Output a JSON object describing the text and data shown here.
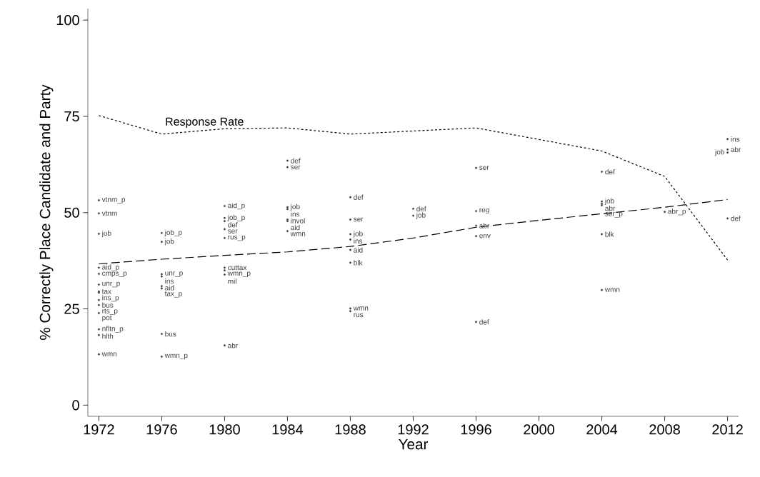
{
  "chart_data": {
    "type": "line",
    "xlabel": "Year",
    "ylabel": "% Correctly Place Candidate and Party",
    "x": [
      1972,
      1976,
      1980,
      1984,
      1988,
      1992,
      1996,
      2000,
      2004,
      2008,
      2012
    ],
    "series": [
      {
        "name": "Response Rate",
        "color": "#000000",
        "line_style": "dotted",
        "values": [
          75.2,
          70.4,
          71.8,
          72.0,
          70.4,
          71.2,
          72.0,
          69.0,
          66.0,
          59.4,
          37.7
        ]
      },
      {
        "color": "#000000",
        "line_style": "dashed",
        "values": [
          36.7,
          37.9,
          38.9,
          39.8,
          41.2,
          43.4,
          46.2,
          48.0,
          49.7,
          51.4,
          53.4
        ]
      },
      {
        "type": "scatter",
        "marker": "circle",
        "color": "#404040",
        "x": [
          1972,
          1972,
          1972,
          1972,
          1972,
          1972,
          1972,
          1972,
          1972,
          1972,
          1972,
          1972,
          1972,
          1972,
          1976,
          1976,
          1976,
          1976,
          1976,
          1976,
          1976,
          1976,
          1980,
          1980,
          1980,
          1980,
          1980,
          1980,
          1980,
          1980,
          1980,
          1984,
          1984,
          1984,
          1984,
          1984,
          1984,
          1984,
          1988,
          1988,
          1988,
          1988,
          1988,
          1988,
          1988,
          1988,
          1992,
          1992,
          1996,
          1996,
          1996,
          1996,
          1996,
          2004,
          2004,
          2004,
          2004,
          2004,
          2004,
          2008,
          2012,
          2012,
          2012,
          2012
        ],
        "values": [
          53.2,
          49.8,
          44.5,
          35.7,
          34.1,
          31.3,
          29.5,
          29.2,
          27.3,
          26.0,
          23.9,
          19.7,
          18.2,
          13.2,
          44.7,
          42.4,
          34.0,
          33.4,
          30.9,
          30.3,
          18.5,
          12.6,
          51.7,
          48.6,
          47.8,
          45.7,
          43.4,
          35.7,
          35.0,
          33.9,
          15.5,
          63.5,
          61.8,
          51.4,
          50.9,
          48.2,
          47.8,
          45.2,
          54.0,
          48.2,
          44.4,
          43.0,
          40.3,
          37.0,
          25.1,
          24.4,
          51.0,
          49.2,
          61.6,
          50.4,
          46.6,
          43.9,
          21.6,
          60.6,
          52.9,
          52.3,
          51.9,
          44.4,
          29.9,
          50.2,
          69.1,
          66.4,
          65.6,
          48.5
        ],
        "value_labels": [
          "vtnm_p",
          "vtnm",
          "job",
          "aid_p",
          "cmps_p",
          "unr_p",
          "tax",
          "ins_p",
          "bus",
          "rts_p",
          "pot",
          "nfltn_p",
          "hlth",
          "wmn",
          "job_p",
          "job",
          "unr_p",
          "ins",
          "aid",
          "tax_p",
          "bus",
          "wmn_p",
          "aid_p",
          "job_p",
          "def",
          "ser",
          "rus_p",
          "cuttax",
          "wmn_p",
          "mil",
          "abr",
          "def",
          "ser",
          "job",
          "ins",
          "invol",
          "aid",
          "wmn",
          "def",
          "ser",
          "job",
          "ins",
          "aid",
          "blk",
          "wmn",
          "rus",
          "def",
          "job",
          "ser",
          "reg",
          "abr",
          "env",
          "def",
          "def",
          "job",
          "abr",
          "ser_p",
          "blk",
          "wmn",
          "abr_p",
          "ins",
          "abr",
          "job",
          "def"
        ]
      }
    ],
    "xlim": [
      1971.3,
      2012.7
    ],
    "ylim": [
      -2.9,
      103
    ],
    "xticks": [
      1972,
      1976,
      1980,
      1984,
      1988,
      1992,
      1996,
      2000,
      2004,
      2008,
      2012
    ],
    "yticks": [
      0,
      25,
      50,
      75,
      100
    ],
    "grid": false,
    "legend": false,
    "marker": "none"
  }
}
